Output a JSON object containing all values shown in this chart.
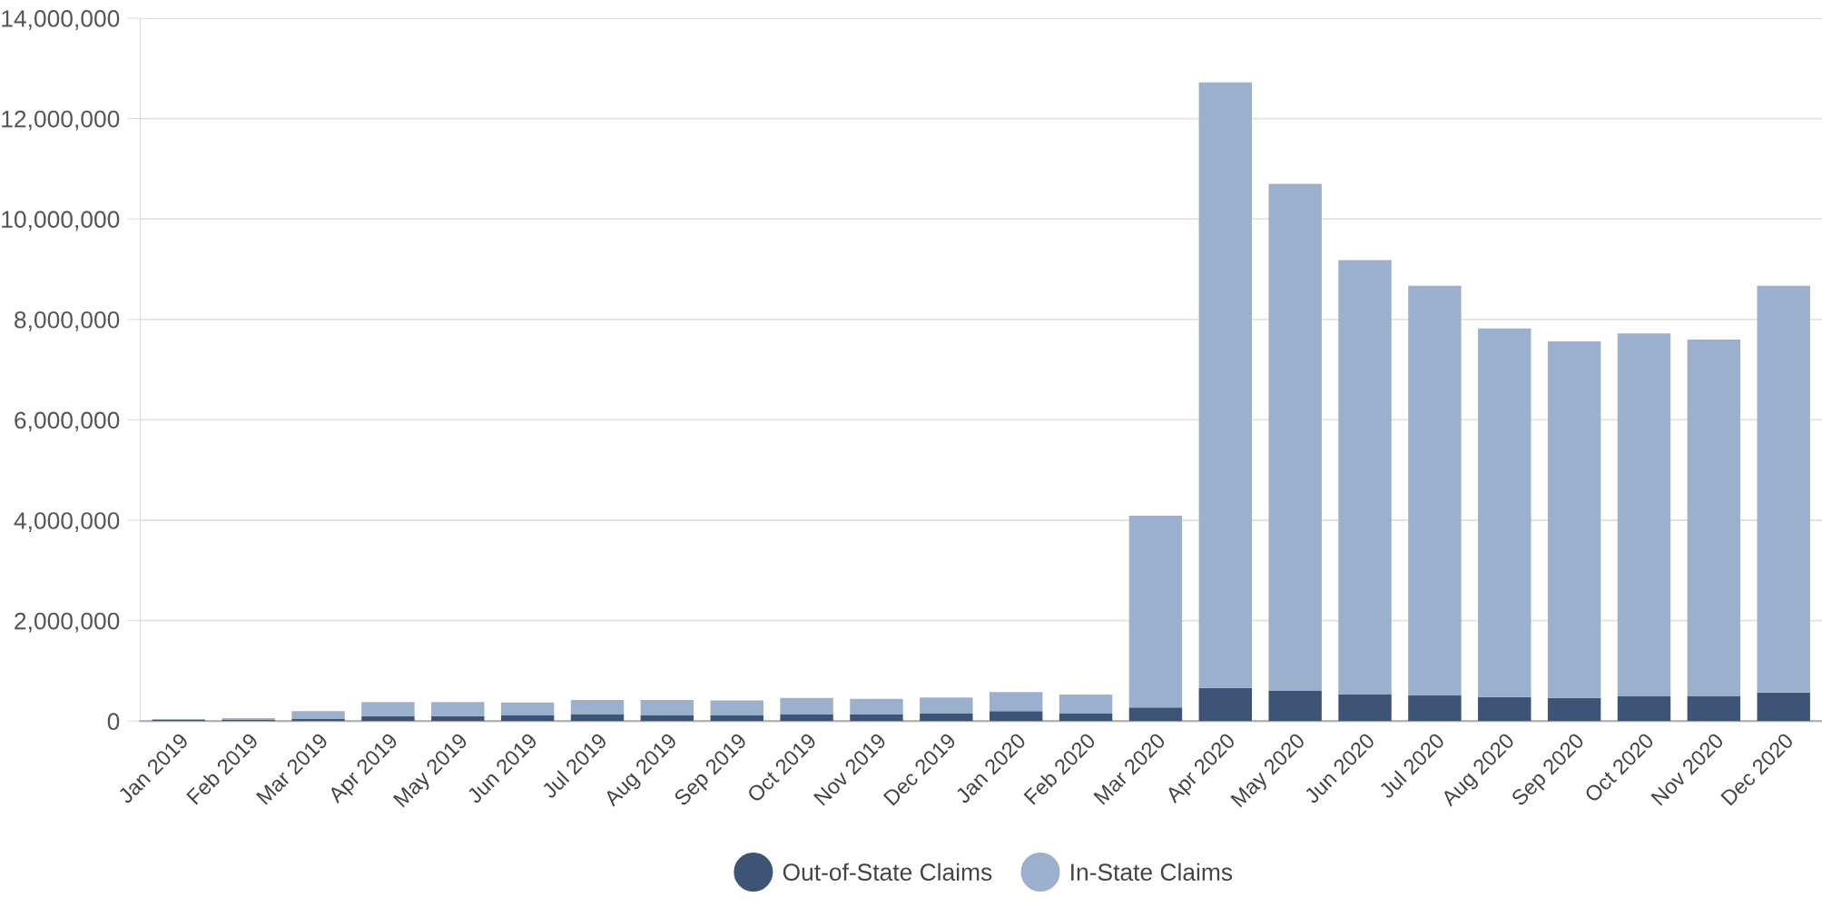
{
  "chart_data": {
    "type": "bar",
    "stacked": true,
    "categories": [
      "Jan 2019",
      "Feb 2019",
      "Mar 2019",
      "Apr 2019",
      "May 2019",
      "Jun 2019",
      "Jul 2019",
      "Aug 2019",
      "Sep 2019",
      "Oct 2019",
      "Nov 2019",
      "Dec 2019",
      "Jan 2020",
      "Feb 2020",
      "Mar 2020",
      "Apr 2020",
      "May 2020",
      "Jun 2020",
      "Jul 2020",
      "Aug 2020",
      "Sep 2020",
      "Oct 2020",
      "Nov 2020",
      "Dec 2020"
    ],
    "series": [
      {
        "name": "Out-of-State Claims",
        "color": "#3d5477",
        "values": [
          20000,
          20000,
          40000,
          100000,
          100000,
          110000,
          130000,
          120000,
          120000,
          130000,
          130000,
          150000,
          200000,
          150000,
          270000,
          660000,
          610000,
          530000,
          510000,
          480000,
          460000,
          490000,
          500000,
          570000
        ]
      },
      {
        "name": "In-State Claims",
        "color": "#9bb0cc",
        "values": [
          20000,
          40000,
          160000,
          280000,
          280000,
          260000,
          290000,
          300000,
          290000,
          330000,
          310000,
          320000,
          380000,
          380000,
          3820000,
          12060000,
          10090000,
          8650000,
          8160000,
          7340000,
          7100000,
          7230000,
          7100000,
          8100000
        ]
      }
    ],
    "ylim": [
      0,
      14000000
    ],
    "yticks": [
      0,
      {
        "value": 2000000,
        "label": "2,000,000"
      },
      {
        "value": 4000000,
        "label": "4,000,000"
      },
      {
        "value": 6000000,
        "label": "6,000,000"
      },
      {
        "value": 8000000,
        "label": "8,000,000"
      },
      {
        "value": 10000000,
        "label": "10,000,000"
      },
      {
        "value": 12000000,
        "label": "12,000,000"
      },
      {
        "value": 14000000,
        "label": "14,000,000"
      }
    ],
    "grid": "y",
    "legend": "bottom",
    "marker": "circle"
  }
}
